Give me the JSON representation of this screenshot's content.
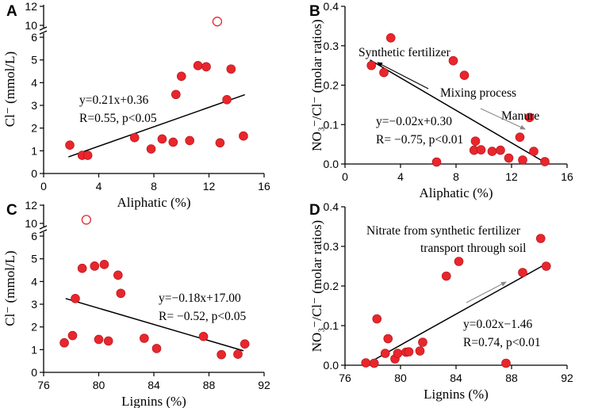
{
  "colors": {
    "point_fill": "#e8262c",
    "point_stroke": "#b0121a",
    "line": "#000000",
    "arrow": "#888888"
  },
  "chart_data": [
    {
      "id": "A",
      "type": "scatter",
      "panel_label": "A",
      "xlabel": "Aliphatic (%)",
      "ylabel": "Cl⁻ (mmol/L)",
      "xlim": [
        0,
        16
      ],
      "ylim": [
        0,
        6
      ],
      "broken_axis_upper": [
        10,
        12
      ],
      "x_ticks": [
        "0",
        "4",
        "8",
        "12",
        "16"
      ],
      "y_ticks": [
        "0",
        "1",
        "2",
        "3",
        "4",
        "5",
        "6"
      ],
      "y_ticks_upper": [
        "10",
        "12"
      ],
      "points": [
        [
          1.9,
          1.25
        ],
        [
          2.8,
          0.8
        ],
        [
          3.2,
          0.8
        ],
        [
          6.6,
          1.58
        ],
        [
          7.8,
          1.08
        ],
        [
          8.6,
          1.52
        ],
        [
          9.4,
          1.38
        ],
        [
          9.6,
          3.48
        ],
        [
          10.0,
          4.28
        ],
        [
          10.6,
          1.45
        ],
        [
          11.2,
          4.75
        ],
        [
          11.8,
          4.7
        ],
        [
          12.8,
          1.35
        ],
        [
          13.3,
          3.25
        ],
        [
          13.6,
          4.6
        ],
        [
          14.5,
          1.65
        ]
      ],
      "outliers": [
        [
          12.6,
          10.4
        ]
      ],
      "fit": {
        "x": [
          1.8,
          14.6
        ],
        "y": [
          0.73,
          3.47
        ]
      },
      "annotations": [
        "y=0.21x+0.36",
        "R=0.55, p<0.05"
      ]
    },
    {
      "id": "B",
      "type": "scatter",
      "panel_label": "B",
      "xlabel": "Aliphatic (%)",
      "ylabel": "NO₃⁻/Cl⁻ (molar ratios)",
      "xlim": [
        0,
        16
      ],
      "ylim": [
        0,
        0.4
      ],
      "x_ticks": [
        "0",
        "4",
        "8",
        "12",
        "16"
      ],
      "y_ticks": [
        "0.0",
        "0.1",
        "0.2",
        "0.3",
        "0.4"
      ],
      "points": [
        [
          1.9,
          0.25
        ],
        [
          2.8,
          0.232
        ],
        [
          3.3,
          0.32
        ],
        [
          6.6,
          0.005
        ],
        [
          7.8,
          0.262
        ],
        [
          8.6,
          0.225
        ],
        [
          9.3,
          0.035
        ],
        [
          9.4,
          0.058
        ],
        [
          9.8,
          0.036
        ],
        [
          10.6,
          0.032
        ],
        [
          11.2,
          0.035
        ],
        [
          11.8,
          0.015
        ],
        [
          12.6,
          0.068
        ],
        [
          12.8,
          0.01
        ],
        [
          13.3,
          0.118
        ],
        [
          13.6,
          0.032
        ],
        [
          14.4,
          0.006
        ]
      ],
      "fit": {
        "x": [
          1.8,
          14.6
        ],
        "y": [
          0.264,
          0.0
        ]
      },
      "annotations": [
        "Synthetic fertilizer",
        "Mixing process",
        "Manure",
        "y=−0.02x+0.30",
        "R= −0.75, p<0.01"
      ]
    },
    {
      "id": "C",
      "type": "scatter",
      "panel_label": "C",
      "xlabel": "Lignins (%)",
      "ylabel": "Cl⁻ (mmol/L)",
      "xlim": [
        76,
        92
      ],
      "ylim": [
        0,
        6
      ],
      "broken_axis_upper": [
        10,
        12
      ],
      "x_ticks": [
        "76",
        "80",
        "84",
        "88",
        "92"
      ],
      "y_ticks": [
        "0",
        "1",
        "2",
        "3",
        "4",
        "5",
        "6"
      ],
      "y_ticks_upper": [
        "10",
        "12"
      ],
      "points": [
        [
          77.5,
          1.3
        ],
        [
          78.1,
          1.62
        ],
        [
          78.3,
          3.25
        ],
        [
          78.8,
          4.58
        ],
        [
          79.7,
          4.68
        ],
        [
          80.0,
          1.45
        ],
        [
          80.4,
          4.75
        ],
        [
          80.7,
          1.38
        ],
        [
          81.4,
          4.28
        ],
        [
          81.6,
          3.48
        ],
        [
          83.3,
          1.5
        ],
        [
          84.2,
          1.05
        ],
        [
          87.6,
          1.58
        ],
        [
          88.9,
          0.78
        ],
        [
          90.1,
          0.8
        ],
        [
          90.6,
          1.25
        ]
      ],
      "outliers": [
        [
          79.1,
          10.4
        ]
      ],
      "fit": {
        "x": [
          77.6,
          90.5
        ],
        "y": [
          3.25,
          0.95
        ]
      },
      "annotations": [
        "y=−0.18x+17.00",
        "R= −0.52, p<0.05"
      ]
    },
    {
      "id": "D",
      "type": "scatter",
      "panel_label": "D",
      "xlabel": "Lignins (%)",
      "ylabel": "NO₃⁻/Cl⁻ (molar ratios)",
      "xlim": [
        76,
        92
      ],
      "ylim": [
        0,
        0.4
      ],
      "x_ticks": [
        "76",
        "80",
        "84",
        "88",
        "92"
      ],
      "y_ticks": [
        "0.0",
        "0.1",
        "0.2",
        "0.3",
        "0.4"
      ],
      "points": [
        [
          77.5,
          0.006
        ],
        [
          78.1,
          0.005
        ],
        [
          78.3,
          0.117
        ],
        [
          78.9,
          0.03
        ],
        [
          79.1,
          0.067
        ],
        [
          79.6,
          0.016
        ],
        [
          79.8,
          0.03
        ],
        [
          80.4,
          0.033
        ],
        [
          80.6,
          0.034
        ],
        [
          81.4,
          0.036
        ],
        [
          81.6,
          0.058
        ],
        [
          83.3,
          0.225
        ],
        [
          84.2,
          0.262
        ],
        [
          87.6,
          0.005
        ],
        [
          88.8,
          0.234
        ],
        [
          90.1,
          0.32
        ],
        [
          90.5,
          0.25
        ]
      ],
      "fit": {
        "x": [
          77.4,
          90.6
        ],
        "y": [
          0.0,
          0.258
        ]
      },
      "annotations": [
        "Nitrate from synthetic fertilizer",
        "transport through soil",
        "y=0.02x−1.46",
        "R=0.74, p<0.01"
      ]
    }
  ]
}
